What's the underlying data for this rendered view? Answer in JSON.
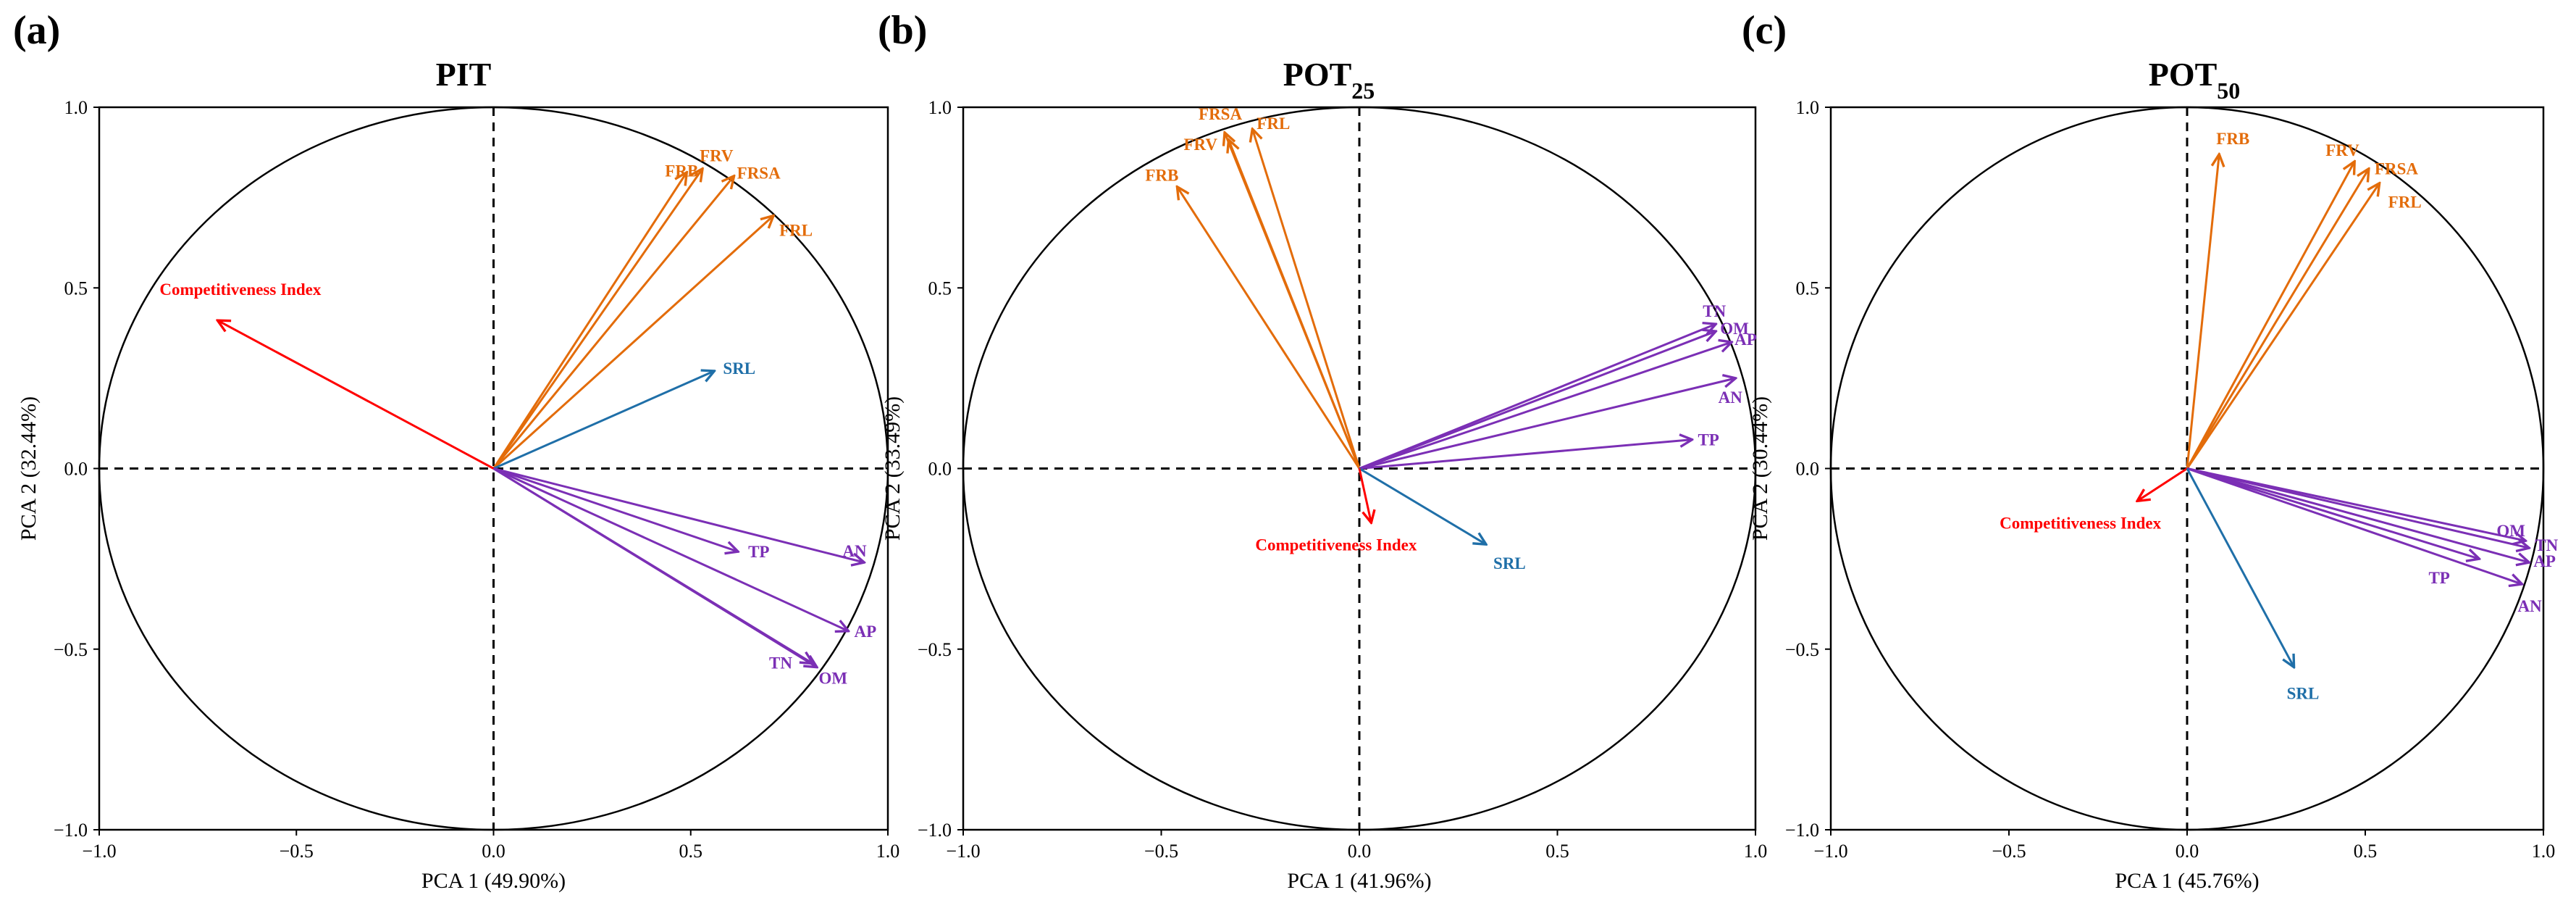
{
  "colors": {
    "root_traits": "#E36C0A",
    "srl": "#1F6FA8",
    "soil": "#7B2FB5",
    "competitiveness": "#FF0000",
    "axes": "#000000"
  },
  "chart_data": [
    {
      "type": "biplot",
      "panel_label": "(a)",
      "title": "PIT",
      "title_subscript": "",
      "xlabel": "PCA 1 (49.90%)",
      "ylabel": "PCA 2 (32.44%)",
      "xlim": [
        -1.0,
        1.0
      ],
      "ylim": [
        -1.0,
        1.0
      ],
      "xticks": [
        "−1.0",
        "−0.5",
        "0.0",
        "0.5",
        "1.0"
      ],
      "yticks": [
        "−1.0",
        "−0.5",
        "0.0",
        "0.5",
        "1.0"
      ],
      "unit_circle": true,
      "vectors": [
        {
          "name": "FRB",
          "x": 0.49,
          "y": 0.82,
          "group": "root_traits"
        },
        {
          "name": "FRV",
          "x": 0.53,
          "y": 0.83,
          "group": "root_traits"
        },
        {
          "name": "FRSA",
          "x": 0.61,
          "y": 0.81,
          "group": "root_traits"
        },
        {
          "name": "FRL",
          "x": 0.71,
          "y": 0.7,
          "group": "root_traits"
        },
        {
          "name": "SRL",
          "x": 0.56,
          "y": 0.27,
          "group": "srl"
        },
        {
          "name": "Competitiveness Index",
          "x": -0.7,
          "y": 0.41,
          "group": "competitiveness"
        },
        {
          "name": "AN",
          "x": 0.94,
          "y": -0.26,
          "group": "soil"
        },
        {
          "name": "TP",
          "x": 0.62,
          "y": -0.23,
          "group": "soil"
        },
        {
          "name": "AP",
          "x": 0.9,
          "y": -0.45,
          "group": "soil"
        },
        {
          "name": "TN",
          "x": 0.82,
          "y": -0.55,
          "group": "soil"
        },
        {
          "name": "OM",
          "x": 0.81,
          "y": -0.54,
          "group": "soil"
        }
      ]
    },
    {
      "type": "biplot",
      "panel_label": "(b)",
      "title": "POT",
      "title_subscript": "25",
      "xlabel": "PCA 1 (41.96%)",
      "ylabel": "PCA 2 (33.49%)",
      "xlim": [
        -1.0,
        1.0
      ],
      "ylim": [
        -1.0,
        1.0
      ],
      "xticks": [
        "−1.0",
        "−0.5",
        "0.0",
        "0.5",
        "1.0"
      ],
      "yticks": [
        "−1.0",
        "−0.5",
        "0.0",
        "0.5",
        "1.0"
      ],
      "unit_circle": true,
      "vectors": [
        {
          "name": "FRSA",
          "x": -0.34,
          "y": 0.93,
          "group": "root_traits"
        },
        {
          "name": "FRL",
          "x": -0.27,
          "y": 0.94,
          "group": "root_traits"
        },
        {
          "name": "FRV",
          "x": -0.33,
          "y": 0.91,
          "group": "root_traits"
        },
        {
          "name": "FRB",
          "x": -0.46,
          "y": 0.78,
          "group": "root_traits"
        },
        {
          "name": "TN",
          "x": 0.9,
          "y": 0.4,
          "group": "soil"
        },
        {
          "name": "OM",
          "x": 0.9,
          "y": 0.38,
          "group": "soil"
        },
        {
          "name": "AP",
          "x": 0.94,
          "y": 0.35,
          "group": "soil"
        },
        {
          "name": "AN",
          "x": 0.95,
          "y": 0.25,
          "group": "soil"
        },
        {
          "name": "TP",
          "x": 0.84,
          "y": 0.08,
          "group": "soil"
        },
        {
          "name": "SRL",
          "x": 0.32,
          "y": -0.21,
          "group": "srl"
        },
        {
          "name": "Competitiveness Index",
          "x": 0.03,
          "y": -0.15,
          "group": "competitiveness"
        }
      ]
    },
    {
      "type": "biplot",
      "panel_label": "(c)",
      "title": "POT",
      "title_subscript": "50",
      "xlabel": "PCA 1 (45.76%)",
      "ylabel": "PCA 2 (30.44%)",
      "xlim": [
        -1.0,
        1.0
      ],
      "ylim": [
        -1.0,
        1.0
      ],
      "xticks": [
        "−1.0",
        "−0.5",
        "0.0",
        "0.5",
        "1.0"
      ],
      "yticks": [
        "−1.0",
        "−0.5",
        "0.0",
        "0.5",
        "1.0"
      ],
      "unit_circle": true,
      "vectors": [
        {
          "name": "FRB",
          "x": 0.09,
          "y": 0.87,
          "group": "root_traits"
        },
        {
          "name": "FRV",
          "x": 0.47,
          "y": 0.85,
          "group": "root_traits"
        },
        {
          "name": "FRSA",
          "x": 0.51,
          "y": 0.83,
          "group": "root_traits"
        },
        {
          "name": "FRL",
          "x": 0.54,
          "y": 0.79,
          "group": "root_traits"
        },
        {
          "name": "OM",
          "x": 0.95,
          "y": -0.2,
          "group": "soil"
        },
        {
          "name": "TN",
          "x": 0.96,
          "y": -0.22,
          "group": "soil"
        },
        {
          "name": "AP",
          "x": 0.96,
          "y": -0.26,
          "group": "soil"
        },
        {
          "name": "TP",
          "x": 0.82,
          "y": -0.25,
          "group": "soil"
        },
        {
          "name": "AN",
          "x": 0.94,
          "y": -0.32,
          "group": "soil"
        },
        {
          "name": "Competitiveness Index",
          "x": -0.14,
          "y": -0.09,
          "group": "competitiveness"
        },
        {
          "name": "SRL",
          "x": 0.3,
          "y": -0.55,
          "group": "srl"
        }
      ]
    }
  ]
}
